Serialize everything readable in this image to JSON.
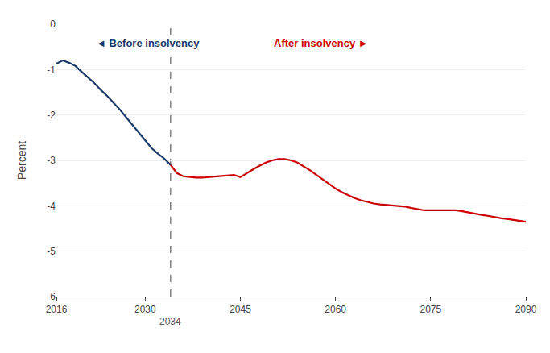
{
  "chart_data": {
    "type": "line",
    "ylabel": "Percent",
    "xlim": [
      2016,
      2090
    ],
    "ylim": [
      -6,
      0
    ],
    "xticks": [
      2016,
      2030,
      2045,
      2060,
      2075,
      2090
    ],
    "yticks": [
      0,
      -1,
      -2,
      -3,
      -4,
      -5,
      -6
    ],
    "grid": "y",
    "series": [
      {
        "color": "#1a3a6b",
        "x": [
          2016,
          2017,
          2018,
          2019,
          2020,
          2021,
          2022,
          2023,
          2024,
          2025,
          2026,
          2027,
          2028,
          2029,
          2030,
          2031,
          2032,
          2033,
          2034
        ],
        "values": [
          -0.87,
          -0.8,
          -0.85,
          -0.92,
          -1.05,
          -1.18,
          -1.3,
          -1.45,
          -1.58,
          -1.73,
          -1.88,
          -2.05,
          -2.22,
          -2.4,
          -2.58,
          -2.73,
          -2.85,
          -2.96,
          -3.1
        ]
      },
      {
        "color": "#cc0000",
        "x": [
          2034,
          2035,
          2036,
          2037,
          2038,
          2039,
          2040,
          2041,
          2042,
          2043,
          2044,
          2045,
          2046,
          2047,
          2048,
          2049,
          2050,
          2051,
          2052,
          2053,
          2054,
          2055,
          2056,
          2057,
          2058,
          2059,
          2060,
          2061,
          2062,
          2063,
          2064,
          2065,
          2066,
          2067,
          2068,
          2069,
          2070,
          2071,
          2072,
          2073,
          2074,
          2075,
          2076,
          2077,
          2078,
          2079,
          2080,
          2081,
          2082,
          2083,
          2084,
          2085,
          2086,
          2087,
          2088,
          2089,
          2090
        ],
        "values": [
          -3.1,
          -3.28,
          -3.35,
          -3.37,
          -3.38,
          -3.38,
          -3.37,
          -3.35,
          -3.35,
          -3.33,
          -3.32,
          -3.37,
          -3.28,
          -3.2,
          -3.12,
          -3.05,
          -3.0,
          -2.97,
          -2.97,
          -3.0,
          -3.05,
          -3.13,
          -3.22,
          -3.32,
          -3.42,
          -3.52,
          -3.62,
          -3.7,
          -3.77,
          -3.83,
          -3.88,
          -3.92,
          -3.95,
          -3.97,
          -3.98,
          -3.99,
          -4.0,
          -4.02,
          -4.05,
          -4.08,
          -4.1,
          -4.1,
          -4.1,
          -4.09,
          -4.09,
          -4.1,
          -4.12,
          -4.15,
          -4.17,
          -4.2,
          -4.22,
          -4.25,
          -4.27,
          -4.29,
          -4.31,
          -4.33,
          -4.35
        ]
      }
    ],
    "vline": {
      "x": 2034,
      "label": "2034",
      "color": "#808080",
      "label_color": "#555555",
      "line_style": "dashed"
    },
    "annotations": [
      {
        "text": "◄ Before insolvency",
        "color": "#1a3a6b"
      },
      {
        "text": "After insolvency ►",
        "color": "#cc0000"
      }
    ]
  }
}
